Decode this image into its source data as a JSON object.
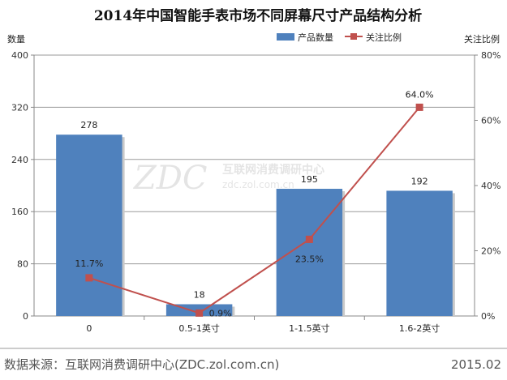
{
  "chart_data": {
    "type": "bar",
    "title": "2014年中国智能手表市场不同屏幕尺寸产品结构分析",
    "ylabel_left": "数量",
    "ylabel_right": "关注比例",
    "categories": [
      "0",
      "0.5-1英寸",
      "1-1.5英寸",
      "1.6-2英寸"
    ],
    "ylim_left": [
      0,
      400
    ],
    "yticks_left": [
      "0",
      "80",
      "160",
      "240",
      "320",
      "400"
    ],
    "ylim_right": [
      0,
      80
    ],
    "yticks_right": [
      "0%",
      "20%",
      "40%",
      "60%",
      "80%"
    ],
    "grid": true,
    "legend_position": "top-right",
    "series": [
      {
        "name": "产品数量",
        "type": "bar",
        "axis": "left",
        "color": "#4F81BD",
        "values": [
          278,
          18,
          195,
          192
        ],
        "labels": [
          "278",
          "18",
          "195",
          "192"
        ]
      },
      {
        "name": "关注比例",
        "type": "line",
        "axis": "right",
        "color": "#C0504D",
        "values": [
          11.7,
          0.9,
          23.5,
          64.0
        ],
        "labels": [
          "11.7%",
          "0.9%",
          "23.5%",
          "64.0%"
        ]
      }
    ]
  },
  "watermark": {
    "logo": "ZDC",
    "cn": "互联网消费调研中心",
    "url": "zdc.zol.com.cn"
  },
  "footer": {
    "source": "数据来源：互联网消费调研中心(ZDC.zol.com.cn)",
    "date": "2015.02"
  }
}
